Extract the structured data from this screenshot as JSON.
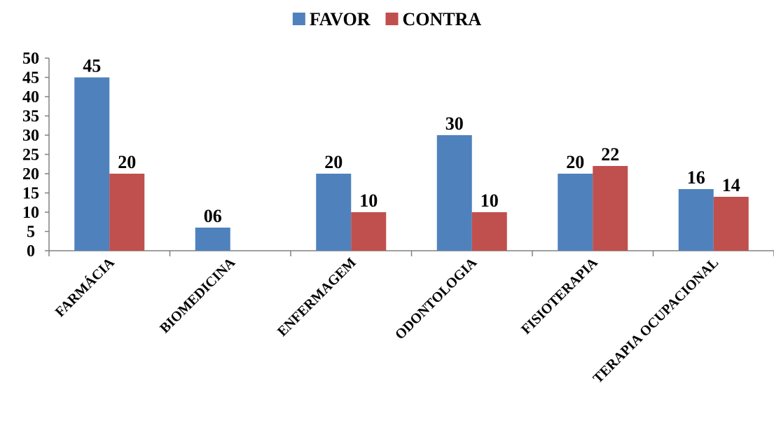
{
  "chart_data": {
    "type": "bar",
    "title": "",
    "xlabel": "",
    "ylabel": "",
    "categories": [
      "FARMÁCIA",
      "BIOMEDICINA",
      "ENFERMAGEM",
      "ODONTOLOGIA",
      "FISIOTERAPIA",
      "TERAPIA OCUPACIONAL"
    ],
    "series": [
      {
        "name": "FAVOR",
        "color": "#4F81BD",
        "values": [
          45,
          6,
          20,
          30,
          20,
          16
        ],
        "labels": [
          "45",
          "06",
          "20",
          "30",
          "20",
          "16"
        ]
      },
      {
        "name": "CONTRA",
        "color": "#C0504D",
        "values": [
          20,
          null,
          10,
          10,
          22,
          14
        ],
        "labels": [
          "20",
          "",
          "10",
          "10",
          "22",
          "14"
        ]
      }
    ],
    "ylim": [
      0,
      50
    ],
    "yticks": [
      0,
      5,
      10,
      15,
      20,
      25,
      30,
      35,
      40,
      45,
      50
    ],
    "grid": false,
    "legend_position": "top-center"
  }
}
